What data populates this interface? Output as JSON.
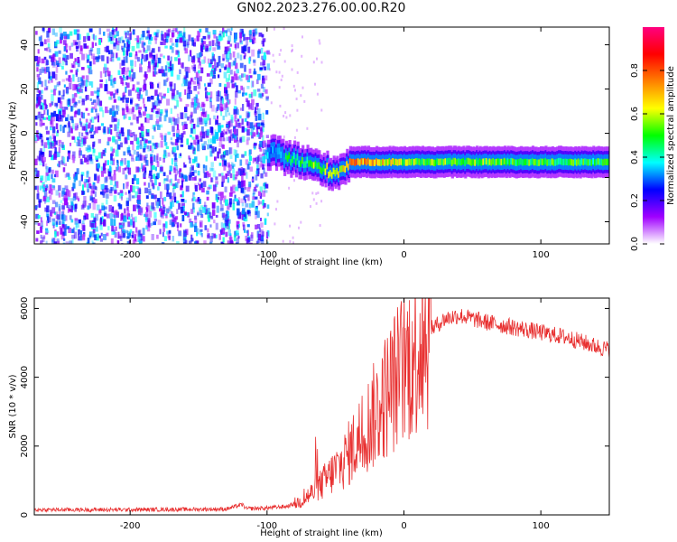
{
  "title": "GN02.2023.276.00.00.R20",
  "chart_data": [
    {
      "type": "heatmap",
      "xlabel": "Height of straight line (km)",
      "ylabel": "Frequency (Hz)",
      "xlim": [
        -270,
        150
      ],
      "ylim": [
        -50,
        48
      ],
      "xticks": [
        -200,
        -100,
        0,
        100
      ],
      "yticks": [
        -40,
        -20,
        0,
        20,
        40
      ],
      "grid": false,
      "colorbar": {
        "label": "Normalized spectral amplitude",
        "range": [
          0,
          1
        ],
        "ticks": [
          "0.0",
          "0.2",
          "0.4",
          "0.6",
          "0.8"
        ],
        "colormap": [
          "#ffffff",
          "#a000ff",
          "#0000ff",
          "#00ffff",
          "#00ff00",
          "#ffff00",
          "#ff8000",
          "#ff0000",
          "#ff0080"
        ]
      },
      "features": {
        "noise_region_x": [
          -270,
          -100
        ],
        "tone_track": [
          {
            "x": -140,
            "y": -3,
            "amp": 0.35
          },
          {
            "x": -100,
            "y": -9,
            "amp": 0.35
          },
          {
            "x": -90,
            "y": -10,
            "amp": 0.4
          },
          {
            "x": -80,
            "y": -12,
            "amp": 0.45
          },
          {
            "x": -70,
            "y": -14,
            "amp": 0.5
          },
          {
            "x": -60,
            "y": -16,
            "amp": 0.55
          },
          {
            "x": -50,
            "y": -18,
            "amp": 0.6
          },
          {
            "x": -40,
            "y": -13,
            "amp": 0.75
          },
          {
            "x": 0,
            "y": -13,
            "amp": 0.55
          },
          {
            "x": 100,
            "y": -13,
            "amp": 0.5
          },
          {
            "x": 150,
            "y": -13,
            "amp": 0.45
          }
        ]
      }
    },
    {
      "type": "line",
      "xlabel": "Height of straight line (km)",
      "ylabel": "SNR (10 * v/v)",
      "xlim": [
        -270,
        150
      ],
      "ylim": [
        0,
        6300
      ],
      "xticks": [
        -200,
        -100,
        0,
        100
      ],
      "yticks": [
        0,
        2000,
        4000,
        6000
      ],
      "grid": false,
      "color": "#e83030",
      "series": [
        {
          "x": [
            -270,
            -240,
            -200,
            -160,
            -130,
            -118,
            -115,
            -100,
            -85,
            -75,
            -65,
            -55,
            -45,
            -40,
            -30,
            -20,
            -10,
            0,
            10,
            20,
            30,
            40,
            50,
            60,
            80,
            100,
            120,
            140,
            150
          ],
          "y": [
            150,
            150,
            150,
            160,
            170,
            300,
            180,
            200,
            250,
            400,
            700,
            1100,
            1500,
            1800,
            2400,
            3000,
            3700,
            4300,
            4900,
            5400,
            5700,
            5800,
            5700,
            5600,
            5450,
            5300,
            5150,
            4900,
            4800
          ]
        }
      ]
    }
  ]
}
